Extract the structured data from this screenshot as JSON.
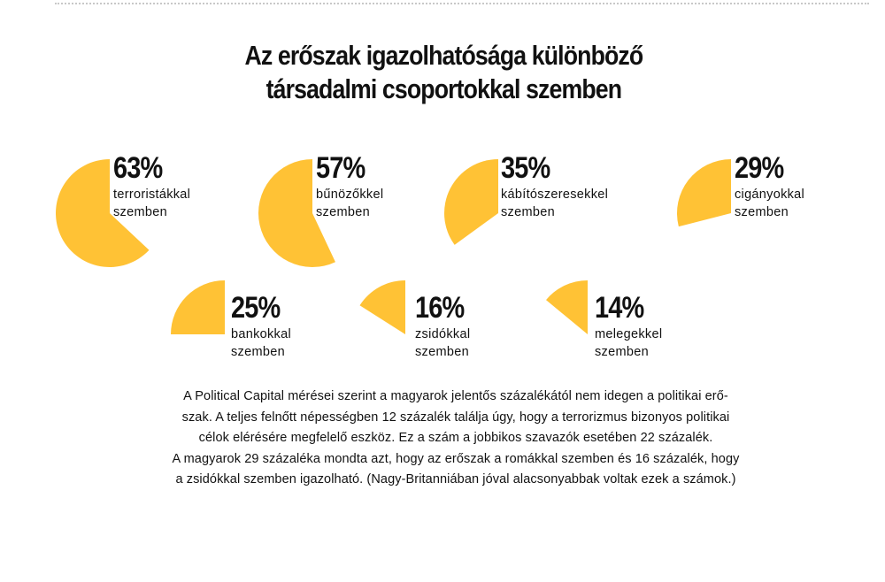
{
  "title": {
    "line1": "Az erőszak igazolhatósága különböző",
    "line2": "társadalmi csoportokkal szemben"
  },
  "colors": {
    "slice": "#FFC235",
    "text": "#111111"
  },
  "chart_data": {
    "type": "pie",
    "title": "Az erőszak igazolhatósága különböző társadalmi csoportokkal szemben",
    "unit": "%",
    "items": [
      {
        "value": 63,
        "label": "63%",
        "line1": "terroristákkal",
        "line2": "szemben"
      },
      {
        "value": 57,
        "label": "57%",
        "line1": "bűnözőkkel",
        "line2": "szemben"
      },
      {
        "value": 35,
        "label": "35%",
        "line1": "kábítószeresekkel",
        "line2": "szemben"
      },
      {
        "value": 29,
        "label": "29%",
        "line1": "cigányokkal",
        "line2": "szemben"
      },
      {
        "value": 25,
        "label": "25%",
        "line1": "bankokkal",
        "line2": "szemben"
      },
      {
        "value": 16,
        "label": "16%",
        "line1": "zsidókkal",
        "line2": "szemben"
      },
      {
        "value": 14,
        "label": "14%",
        "line1": "melegekkel",
        "line2": "szemben"
      }
    ]
  },
  "body": {
    "lines": [
      "A Political Capital mérései szerint a magyarok jelentős százalékától nem idegen a politikai erő-",
      "szak. A teljes felnőtt népességben 12 százalék találja úgy, hogy a terrorizmus bizonyos politikai",
      "célok elérésére megfelelő eszköz. Ez a szám a jobbikos szavazók esetében 22 százalék.",
      "A magyarok 29 százaléka mondta azt, hogy az erőszak a romákkal szemben és 16 százalék, hogy",
      "a zsidókkal szemben igazolható. (Nagy-Britanniában jóval alacsonyabbak voltak ezek a számok.)"
    ]
  }
}
